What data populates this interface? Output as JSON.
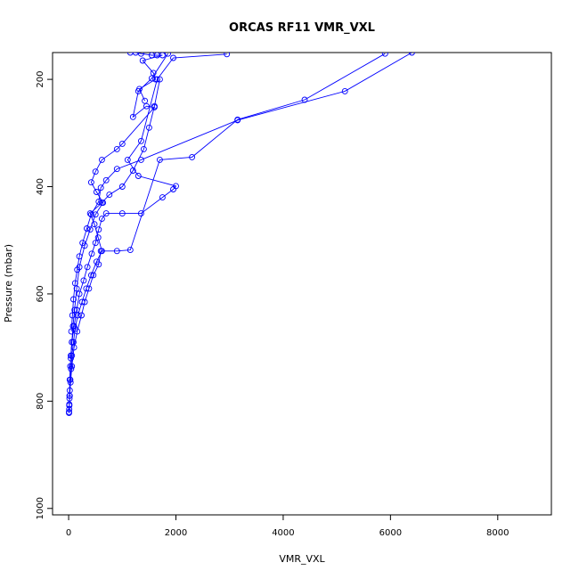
{
  "chart_data": {
    "type": "scatter",
    "title": "ORCAS RF11 VMR_VXL",
    "xlabel": "VMR_VXL",
    "ylabel": "Pressure (mbar)",
    "xlim": [
      -300,
      9000
    ],
    "ylim": [
      1012,
      150
    ],
    "y_reversed": true,
    "x_ticks": [
      0,
      2000,
      4000,
      6000,
      8000
    ],
    "y_ticks": [
      200,
      400,
      600,
      800,
      1000
    ],
    "grid": false,
    "legend": "none",
    "color": "#0000ff",
    "series": [
      {
        "profile": "descent-1",
        "x": [
          8,
          10,
          12,
          15,
          20,
          30,
          45,
          60,
          90,
          120,
          170,
          250,
          330,
          420,
          520,
          620,
          550,
          480,
          400,
          620,
          760,
          1000,
          1200,
          1400,
          1500,
          1600,
          1700
        ],
        "y": [
          822,
          815,
          806,
          795,
          780,
          760,
          740,
          715,
          690,
          665,
          640,
          615,
          590,
          565,
          540,
          520,
          495,
          470,
          450,
          430,
          415,
          400,
          370,
          330,
          290,
          250,
          200
        ]
      },
      {
        "profile": "ascent-1",
        "x": [
          8,
          12,
          20,
          35,
          60,
          100,
          160,
          240,
          300,
          380,
          460,
          560,
          600,
          900,
          1150,
          1700,
          2300,
          3150,
          4400,
          5900
        ],
        "y": [
          820,
          808,
          790,
          765,
          735,
          700,
          670,
          640,
          615,
          590,
          565,
          545,
          520,
          520,
          518,
          350,
          345,
          275,
          238,
          152
        ]
      },
      {
        "profile": "descent-2",
        "x": [
          6400,
          5150,
          3150,
          1350,
          900,
          700,
          600,
          560,
          420,
          340,
          260,
          200,
          160,
          120,
          90,
          70,
          50
        ],
        "y": [
          150,
          222,
          276,
          350,
          367,
          388,
          402,
          428,
          452,
          478,
          505,
          530,
          555,
          580,
          610,
          640,
          670
        ]
      },
      {
        "profile": "ascent-2",
        "x": [
          40,
          60,
          100,
          150,
          200,
          280,
          350,
          430,
          500,
          560,
          620,
          700,
          1000,
          1350,
          1750,
          1950,
          2000,
          1300,
          1100,
          1350,
          1650,
          1950,
          2950
        ],
        "y": [
          720,
          690,
          660,
          630,
          600,
          575,
          550,
          525,
          505,
          480,
          460,
          450,
          450,
          450,
          420,
          405,
          399,
          380,
          350,
          315,
          200,
          160,
          153
        ]
      },
      {
        "profile": "descent-3",
        "x": [
          1850,
          1550,
          1300,
          1200,
          1450,
          1600,
          1000,
          900,
          620,
          500,
          420,
          520,
          640,
          500,
          400,
          300,
          200,
          150,
          110,
          80,
          60,
          40,
          30,
          20,
          15
        ],
        "y": [
          152,
          198,
          222,
          270,
          250,
          252,
          320,
          330,
          350,
          372,
          392,
          410,
          430,
          452,
          480,
          510,
          550,
          590,
          630,
          660,
          690,
          715,
          735,
          760,
          790
        ]
      },
      {
        "profile": "top-cluster",
        "x": [
          1150,
          1250,
          1350,
          1550,
          1650,
          1750,
          1380,
          1580,
          1620,
          1320,
          1420
        ],
        "y": [
          150,
          150,
          152,
          155,
          155,
          155,
          165,
          188,
          200,
          218,
          240
        ]
      }
    ]
  }
}
